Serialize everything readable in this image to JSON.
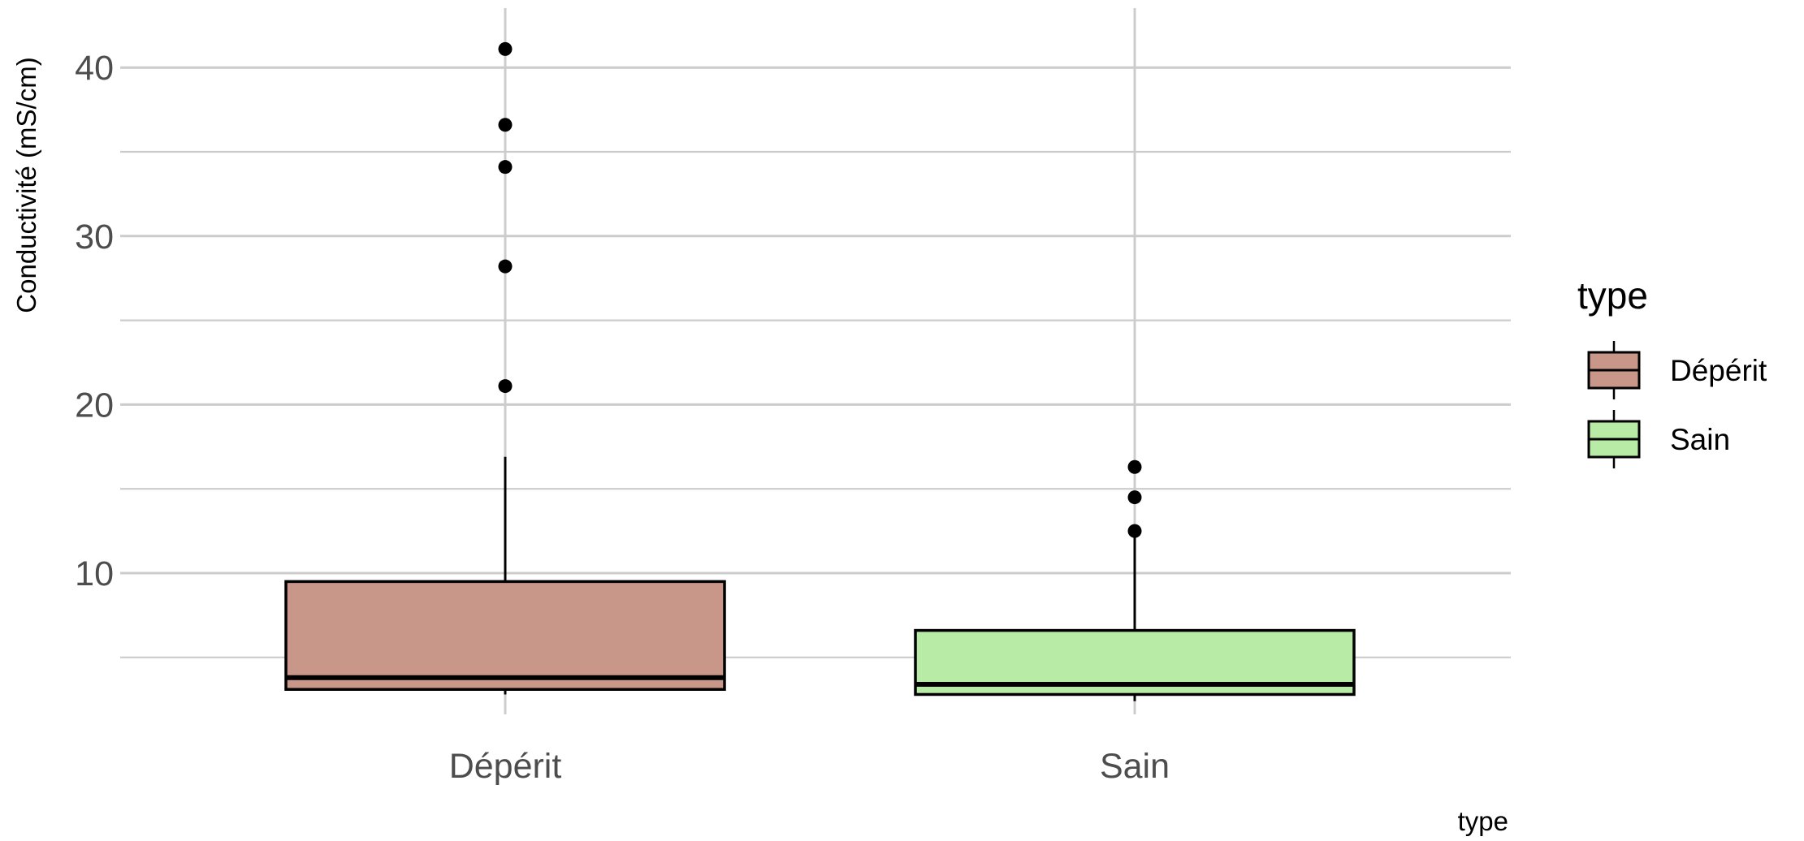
{
  "chart_data": {
    "type": "boxplot",
    "title": "",
    "xlabel": "type",
    "ylabel": "Conductivité (mS/cm)",
    "ylim": [
      0,
      43
    ],
    "y_ticks": [
      10,
      20,
      30,
      40
    ],
    "grid": true,
    "legend": {
      "title": "type",
      "position": "right"
    },
    "categories": [
      "Dépérit",
      "Sain"
    ],
    "series": [
      {
        "name": "Dépérit",
        "color": "#c9968a",
        "min": 2.8,
        "q1": 3.1,
        "median": 3.8,
        "q3": 9.5,
        "max": 16.9,
        "outliers": [
          21.1,
          28.2,
          34.1,
          36.6,
          41.1
        ]
      },
      {
        "name": "Sain",
        "color": "#b7eba6",
        "min": 2.4,
        "q1": 2.8,
        "median": 3.4,
        "q3": 6.6,
        "max": 12.5,
        "outliers": [
          12.5,
          14.5,
          16.3
        ]
      }
    ]
  }
}
